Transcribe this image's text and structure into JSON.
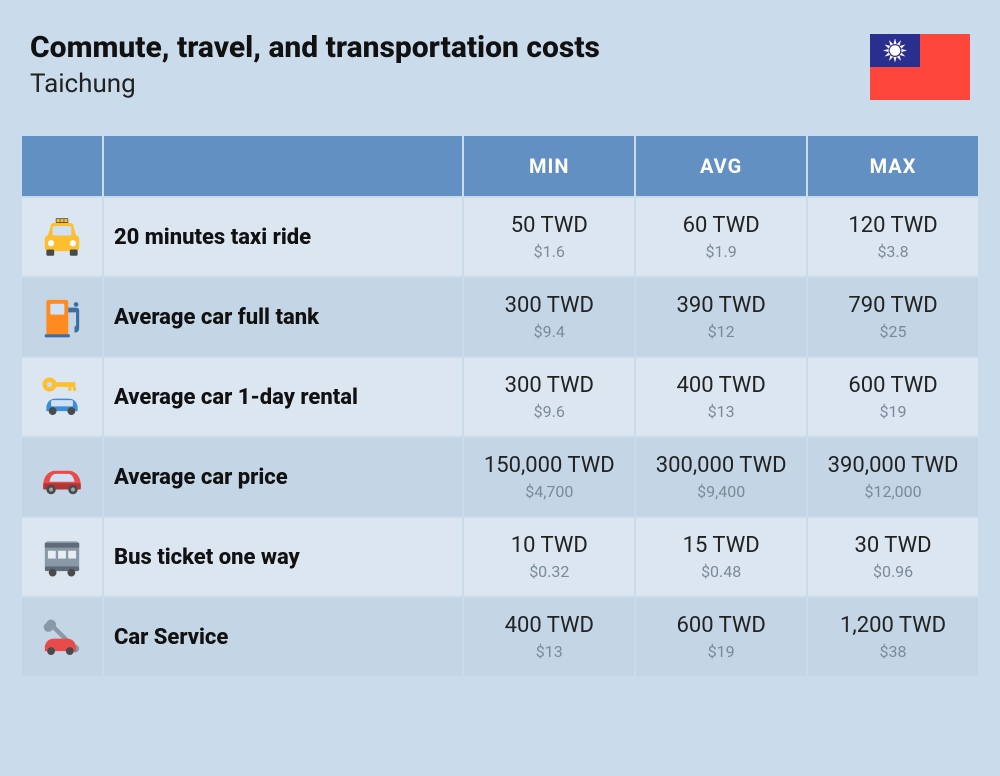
{
  "header": {
    "title": "Commute, travel, and transportation costs",
    "subtitle": "Taichung"
  },
  "flag": {
    "name": "taiwan-flag",
    "bg": "#fe453b",
    "canton": "#2a2f8f",
    "sun": "#ffffff",
    "width": 100,
    "height": 66
  },
  "table": {
    "columns": [
      "MIN",
      "AVG",
      "MAX"
    ],
    "header_bg": "#6390c2",
    "header_fg": "#ffffff",
    "row_odd_bg": "#dbe6f0",
    "row_even_bg": "#c4d6e6",
    "primary_color": "#222222",
    "secondary_color": "#7a8a99",
    "label_fontsize": 22,
    "primary_fontsize": 22,
    "secondary_fontsize": 16,
    "rows": [
      {
        "icon": "taxi-icon",
        "label": "20 minutes taxi ride",
        "min": {
          "p": "50 TWD",
          "s": "$1.6"
        },
        "avg": {
          "p": "60 TWD",
          "s": "$1.9"
        },
        "max": {
          "p": "120 TWD",
          "s": "$3.8"
        }
      },
      {
        "icon": "fuel-pump-icon",
        "label": "Average car full tank",
        "min": {
          "p": "300 TWD",
          "s": "$9.4"
        },
        "avg": {
          "p": "390 TWD",
          "s": "$12"
        },
        "max": {
          "p": "790 TWD",
          "s": "$25"
        }
      },
      {
        "icon": "car-key-icon",
        "label": "Average car 1-day rental",
        "min": {
          "p": "300 TWD",
          "s": "$9.6"
        },
        "avg": {
          "p": "400 TWD",
          "s": "$13"
        },
        "max": {
          "p": "600 TWD",
          "s": "$19"
        }
      },
      {
        "icon": "car-icon",
        "label": "Average car price",
        "min": {
          "p": "150,000 TWD",
          "s": "$4,700"
        },
        "avg": {
          "p": "300,000 TWD",
          "s": "$9,400"
        },
        "max": {
          "p": "390,000 TWD",
          "s": "$12,000"
        }
      },
      {
        "icon": "bus-icon",
        "label": "Bus ticket one way",
        "min": {
          "p": "10 TWD",
          "s": "$0.32"
        },
        "avg": {
          "p": "15 TWD",
          "s": "$0.48"
        },
        "max": {
          "p": "30 TWD",
          "s": "$0.96"
        }
      },
      {
        "icon": "wrench-car-icon",
        "label": "Car Service",
        "min": {
          "p": "400 TWD",
          "s": "$13"
        },
        "avg": {
          "p": "600 TWD",
          "s": "$19"
        },
        "max": {
          "p": "1,200 TWD",
          "s": "$38"
        }
      }
    ]
  },
  "icons": {
    "taxi": {
      "body": "#fdbf2d",
      "dark": "#4a4a4a"
    },
    "fuel": {
      "body": "#ff8a1f",
      "dark": "#3a6ea5",
      "light": "#cfe1f2"
    },
    "key": {
      "key": "#fdbf2d",
      "car": "#3a8fd9"
    },
    "car": {
      "body": "#e94b4b",
      "dark": "#b13636"
    },
    "bus": {
      "body": "#8a99a8",
      "dark": "#5f6b78",
      "light": "#e7edf3"
    },
    "svc": {
      "wrench": "#8a99a8",
      "car": "#e94b4b"
    }
  }
}
